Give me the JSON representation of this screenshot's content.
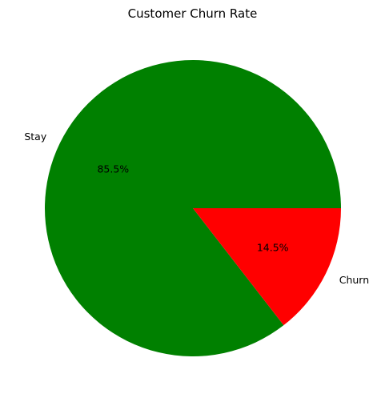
{
  "chart_data": {
    "type": "pie",
    "title": "Customer Churn Rate",
    "categories": [
      "Stay",
      "Churn"
    ],
    "values": [
      85.5,
      14.5
    ],
    "percent_labels": [
      "85.5%",
      "14.5%"
    ],
    "colors": [
      "#008000",
      "#ff0000"
    ],
    "start_angle_deg": 0,
    "direction": "counterclockwise",
    "legend": "none"
  }
}
